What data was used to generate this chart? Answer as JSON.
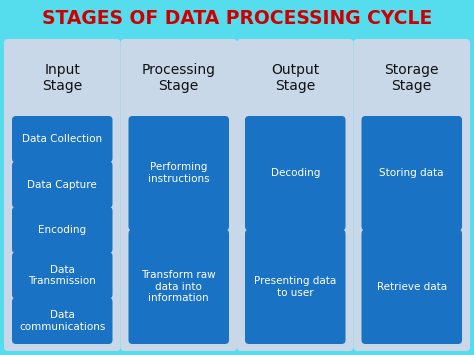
{
  "title": "STAGES OF DATA PROCESSING CYCLE",
  "title_color": "#cc0000",
  "bg_color": "#55ddee",
  "column_bg_color": "#c8d8e8",
  "box_color": "#1a72c4",
  "box_text_color": "#ffffff",
  "header_text_color": "#111111",
  "figsize": [
    4.74,
    3.55
  ],
  "dpi": 100,
  "columns": [
    {
      "header": "Input\nStage",
      "items": [
        "Data Collection",
        "Data Capture",
        "Encoding",
        "Data\nTransmission",
        "Data\ncommunications"
      ]
    },
    {
      "header": "Processing\nStage",
      "items": [
        "Performing\ninstructions",
        "Transform raw\ndata into\ninformation"
      ]
    },
    {
      "header": "Output\nStage",
      "items": [
        "Decoding",
        "Presenting data\nto user"
      ]
    },
    {
      "header": "Storage\nStage",
      "items": [
        "Storing data",
        "Retrieve data"
      ]
    }
  ]
}
